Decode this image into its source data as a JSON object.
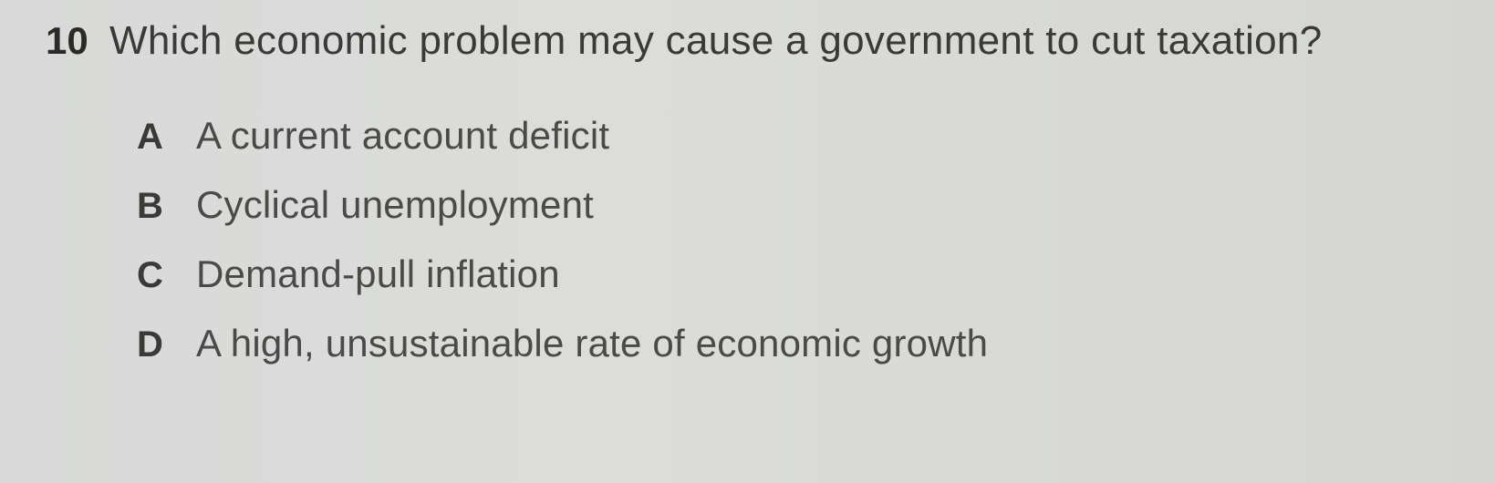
{
  "question": {
    "number": "10",
    "text": "Which economic problem may cause a government to cut taxation?"
  },
  "options": [
    {
      "letter": "A",
      "text": "A current account deficit"
    },
    {
      "letter": "B",
      "text": "Cyclical unemployment"
    },
    {
      "letter": "C",
      "text": "Demand-pull inflation"
    },
    {
      "letter": "D",
      "text": "A high, unsustainable rate of economic growth"
    }
  ],
  "style": {
    "background_color": "#d8d9d8",
    "text_color": "#3a3a38",
    "number_color": "#2a2a28",
    "question_fontsize": 44,
    "option_fontsize": 42,
    "number_fontsize": 42,
    "letter_fontsize": 40,
    "number_weight": 700,
    "letter_weight": 600
  }
}
